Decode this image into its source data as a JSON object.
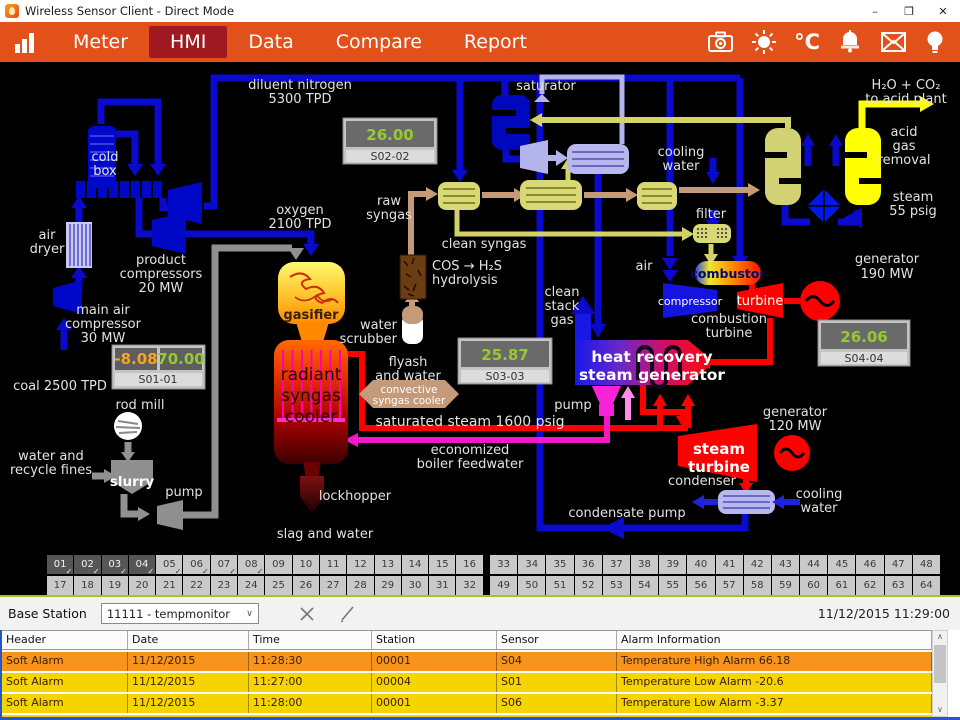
{
  "window": {
    "title": "Wireless Sensor Client - Direct Mode",
    "minimize_glyph": "–",
    "maximize_glyph": "❐",
    "close_glyph": "✕"
  },
  "nav": {
    "items": [
      "Meter",
      "HMI",
      "Data",
      "Compare",
      "Report"
    ],
    "active_item": "HMI",
    "temp_unit": "°C"
  },
  "icons": {
    "app": "flame-app-icon",
    "nav_left": "bar-chart-icon",
    "toolbar": [
      "camera-icon",
      "brightness-icon",
      "temperature-unit",
      "alarm-bell-icon",
      "mail-icon",
      "bulb-icon"
    ],
    "basebar": [
      "clear-x-icon",
      "edit-pencil-icon"
    ],
    "dropdown_chevron": "∨",
    "scroll_up_glyph": "∧",
    "scroll_down_glyph": "∨"
  },
  "hmi": {
    "sensors": {
      "s01": {
        "value_a": "-8.08",
        "value_b": "70.00",
        "id": "S01-01"
      },
      "s02": {
        "value": "26.00",
        "id": "S02-02"
      },
      "s03": {
        "value": "25.87",
        "id": "S03-03"
      },
      "s04": {
        "value": "26.06",
        "id": "S04-04"
      }
    },
    "labels": {
      "diluent_1": "diluent nitrogen",
      "diluent_2": "5300 TPD",
      "saturator": "saturator",
      "h2o_1": "H₂O + CO₂",
      "h2o_2": "to acid plant",
      "coldbox_1": "cold",
      "coldbox_2": "box",
      "cooling_top_1": "cooling",
      "cooling_top_2": "water",
      "agr_1": "acid",
      "agr_2": "gas",
      "agr_3": "removal",
      "raw_1": "raw",
      "raw_2": "syngas",
      "steam55_1": "steam",
      "steam55_2": "55 psig",
      "clean_syngas": "clean syngas",
      "airdryer_1": "air",
      "airdryer_2": "dryer",
      "oxygen_1": "oxygen",
      "oxygen_2": "2100 TPD",
      "filter": "filter",
      "air": "air",
      "combustor": "combustor",
      "gen190_1": "generator",
      "gen190_2": "190 MW",
      "prodcomp_1": "product",
      "prodcomp_2": "compressors",
      "prodcomp_3": "20 MW",
      "cos_1": "COS → H₂S",
      "cos_2": "hydrolysis",
      "mainair_1": "main air",
      "mainair_2": "compressor",
      "mainair_3": "30 MW",
      "compressor": "compressor",
      "turbine_gas": "turbine",
      "cleanstack_1": "clean",
      "cleanstack_2": "stack",
      "cleanstack_3": "gas",
      "combturb_1": "combustion",
      "combturb_2": "turbine",
      "gasifier": "gasifier",
      "scrubber_1": "water",
      "scrubber_2": "scrubber",
      "coal": "coal 2500 TPD",
      "hrsg_1": "heat recovery",
      "hrsg_2": "steam generator",
      "flyash_1": "flyash",
      "flyash_2": "and water",
      "conv_1": "convective",
      "conv_2": "syngas cooler",
      "rsc_1": "radiant",
      "rsc_2": "syngas",
      "rsc_3": "cooler",
      "rodmill": "rod mill",
      "pump_r": "pump",
      "gen120_1": "generator",
      "gen120_2": "120 MW",
      "satsteam": "saturated steam 1600 psig",
      "waterrec_1": "water and",
      "waterrec_2": "recycle fines",
      "slurry": "slurry",
      "econ_1": "economized",
      "econ_2": "boiler feedwater",
      "steamturb_1": "steam",
      "steamturb_2": "turbine",
      "pump_l": "pump",
      "condenser": "condenser",
      "coolwater_br_1": "cooling",
      "coolwater_br_2": "water",
      "lockhopper": "lockhopper",
      "condpump": "condensate pump",
      "slagwater": "slag and water"
    }
  },
  "grid": {
    "left_cells": [
      "01",
      "02",
      "03",
      "04",
      "05",
      "06",
      "07",
      "08",
      "09",
      "10",
      "11",
      "12",
      "13",
      "14",
      "15",
      "16",
      "17",
      "18",
      "19",
      "20",
      "21",
      "22",
      "23",
      "24",
      "25",
      "26",
      "27",
      "28",
      "29",
      "30",
      "31",
      "32"
    ],
    "right_cells": [
      "33",
      "34",
      "35",
      "36",
      "37",
      "38",
      "39",
      "40",
      "41",
      "42",
      "43",
      "44",
      "45",
      "46",
      "47",
      "48",
      "49",
      "50",
      "51",
      "52",
      "53",
      "54",
      "55",
      "56",
      "57",
      "58",
      "59",
      "60",
      "61",
      "62",
      "63",
      "64"
    ],
    "selected": [
      "01",
      "02",
      "03",
      "04"
    ],
    "checked": [
      "01",
      "02",
      "03",
      "04",
      "05",
      "06",
      "07",
      "08"
    ],
    "check_glyph": "✓"
  },
  "basebar": {
    "label": "Base Station",
    "station_value": "11111 - tempmonitor",
    "timestamp": "11/12/2015 11:29:00"
  },
  "table": {
    "columns": [
      "Header",
      "Date",
      "Time",
      "Station",
      "Sensor",
      "Alarm Information"
    ],
    "rows": [
      {
        "header": "Soft Alarm",
        "date": "11/12/2015",
        "time": "11:28:30",
        "station": "00001",
        "sensor": "S04",
        "info": "Temperature High Alarm 66.18",
        "severity": "high"
      },
      {
        "header": "Soft Alarm",
        "date": "11/12/2015",
        "time": "11:27:00",
        "station": "00004",
        "sensor": "S01",
        "info": "Temperature Low Alarm -20.6",
        "severity": "low"
      },
      {
        "header": "Soft Alarm",
        "date": "11/12/2015",
        "time": "11:28:00",
        "station": "00001",
        "sensor": "S06",
        "info": "Temperature Low Alarm -3.37",
        "severity": "low"
      }
    ],
    "row_colors": {
      "high": "#F7941E",
      "low": "#F5D400"
    }
  },
  "colors": {
    "nav_orange": "#E2511A",
    "nav_active_red": "#A01921",
    "value_green": "#97CA32",
    "value_orange": "#F5A623",
    "separator_green": "#9DC523",
    "window_border_blue": "#2656C8"
  }
}
